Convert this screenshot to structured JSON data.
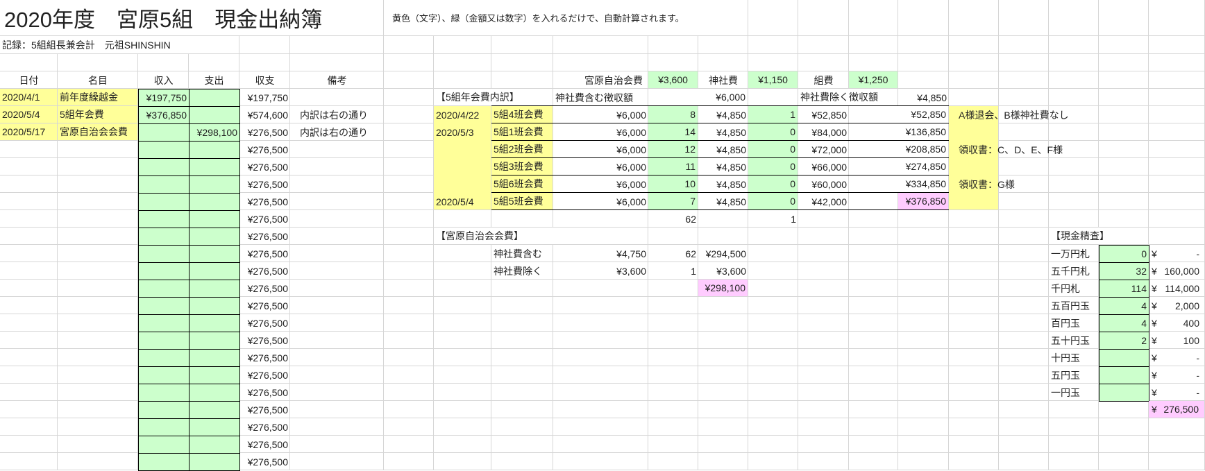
{
  "title": "2020年度　宮原5組　現金出納簿",
  "instructions": "黄色（文字）、緑（金額又は数字）を入れるだけで、自動計算されます。",
  "recorder": "記録：5組組長兼会計　元祖SHINSHIN",
  "colors": {
    "yellow": "#ffff99",
    "green": "#ccffcc",
    "pink": "#ffccff",
    "grid": "#d6d6d6"
  },
  "ledger": {
    "headers": {
      "date": "日付",
      "item": "名目",
      "income": "収入",
      "expense": "支出",
      "balance": "収支",
      "note": "備考"
    },
    "rows": [
      {
        "date": "2020/4/1",
        "item": "前年度繰越金",
        "income": "¥197,750",
        "expense": "",
        "balance": "¥197,750",
        "note": ""
      },
      {
        "date": "2020/5/4",
        "item": "5組年会費",
        "income": "¥376,850",
        "expense": "",
        "balance": "¥574,600",
        "note": "内訳は右の通り"
      },
      {
        "date": "2020/5/17",
        "item": "宮原自治会会費",
        "income": "",
        "expense": "¥298,100",
        "balance": "¥276,500",
        "note": "内訳は右の通り"
      },
      {
        "balance": "¥276,500"
      },
      {
        "balance": "¥276,500"
      },
      {
        "balance": "¥276,500"
      },
      {
        "balance": "¥276,500"
      },
      {
        "balance": "¥276,500"
      },
      {
        "balance": "¥276,500"
      },
      {
        "balance": "¥276,500"
      },
      {
        "balance": "¥276,500"
      },
      {
        "balance": "¥276,500"
      },
      {
        "balance": "¥276,500"
      },
      {
        "balance": "¥276,500"
      },
      {
        "balance": "¥276,500"
      },
      {
        "balance": "¥276,500"
      },
      {
        "balance": "¥276,500"
      },
      {
        "balance": "¥276,500"
      },
      {
        "balance": "¥276,500"
      },
      {
        "balance": "¥276,500"
      },
      {
        "balance": "¥276,500"
      },
      {
        "balance": "¥276,500"
      }
    ]
  },
  "fees": {
    "jichikai_label": "宮原自治会費",
    "jichikai_value": "¥3,600",
    "shrine_label": "神社費",
    "shrine_value": "¥1,150",
    "kumi_label": "組費",
    "kumi_value": "¥1,250"
  },
  "breakdown": {
    "title": "【5組年会費内訳】",
    "incl_label": "神社費含む徴収額",
    "incl_value": "¥6,000",
    "excl_label": "神社費除く徴収額",
    "excl_value": "¥4,850",
    "rows": [
      {
        "date": "2020/4/22",
        "name": "5組4班会費",
        "fee": "¥6,000",
        "count_incl": "8",
        "fee_excl": "¥4,850",
        "count_excl": "1",
        "subtotal": "¥52,850",
        "cumulative": "¥52,850"
      },
      {
        "date": "2020/5/3",
        "name": "5組1班会費",
        "fee": "¥6,000",
        "count_incl": "14",
        "fee_excl": "¥4,850",
        "count_excl": "0",
        "subtotal": "¥84,000",
        "cumulative": "¥136,850"
      },
      {
        "date": "",
        "name": "5組2班会費",
        "fee": "¥6,000",
        "count_incl": "12",
        "fee_excl": "¥4,850",
        "count_excl": "0",
        "subtotal": "¥72,000",
        "cumulative": "¥208,850"
      },
      {
        "date": "",
        "name": "5組3班会費",
        "fee": "¥6,000",
        "count_incl": "11",
        "fee_excl": "¥4,850",
        "count_excl": "0",
        "subtotal": "¥66,000",
        "cumulative": "¥274,850"
      },
      {
        "date": "",
        "name": "5組6班会費",
        "fee": "¥6,000",
        "count_incl": "10",
        "fee_excl": "¥4,850",
        "count_excl": "0",
        "subtotal": "¥60,000",
        "cumulative": "¥334,850"
      },
      {
        "date": "2020/5/4",
        "name": "5組5班会費",
        "fee": "¥6,000",
        "count_incl": "7",
        "fee_excl": "¥4,850",
        "count_excl": "0",
        "subtotal": "¥42,000",
        "cumulative": "¥376,850"
      }
    ],
    "total_incl": "62",
    "total_excl": "1",
    "notes": [
      "A様退会、B様神社費なし",
      "",
      "領収書：C、D、E、F様",
      "",
      "領収書：G様",
      ""
    ]
  },
  "jichikai": {
    "title": "【宮原自治会会費】",
    "rows": [
      {
        "label": "神社費含む",
        "unit": "¥4,750",
        "count": "62",
        "amount": "¥294,500"
      },
      {
        "label": "神社費除く",
        "unit": "¥3,600",
        "count": "1",
        "amount": "¥3,600"
      }
    ],
    "total": "¥298,100"
  },
  "cash_check": {
    "title": "【現金精査】",
    "currency": "¥",
    "rows": [
      {
        "label": "一万円札",
        "count": "0",
        "amount": "-"
      },
      {
        "label": "五千円札",
        "count": "32",
        "amount": "160,000"
      },
      {
        "label": "千円札",
        "count": "114",
        "amount": "114,000"
      },
      {
        "label": "五百円玉",
        "count": "4",
        "amount": "2,000"
      },
      {
        "label": "百円玉",
        "count": "4",
        "amount": "400"
      },
      {
        "label": "五十円玉",
        "count": "2",
        "amount": "100"
      },
      {
        "label": "十円玉",
        "count": "",
        "amount": "-"
      },
      {
        "label": "五円玉",
        "count": "",
        "amount": "-"
      },
      {
        "label": "一円玉",
        "count": "",
        "amount": "-"
      }
    ],
    "total": "276,500"
  }
}
